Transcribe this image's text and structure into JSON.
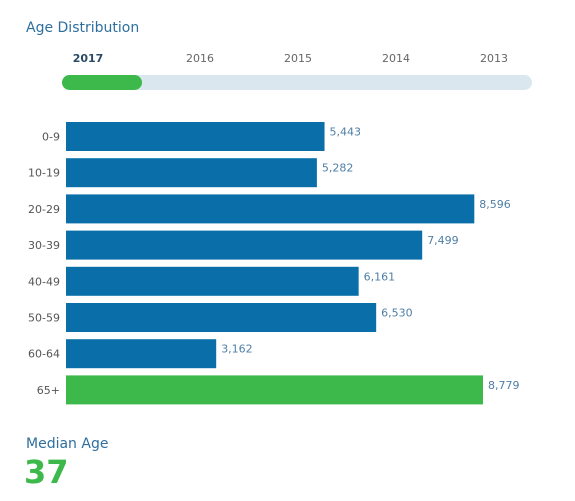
{
  "section_title": "Age Distribution",
  "year_tabs": [
    {
      "label": "2017",
      "active": true
    },
    {
      "label": "2016",
      "active": false
    },
    {
      "label": "2015",
      "active": false
    },
    {
      "label": "2014",
      "active": false
    },
    {
      "label": "2013",
      "active": false
    }
  ],
  "timeline_progress": 0.17,
  "colors": {
    "bar": "#0a6fa8",
    "highlight_bar": "#3db94b",
    "accent_text": "#2e6f9e",
    "timeline_track": "#dbe7ef"
  },
  "chart_data": {
    "type": "bar",
    "orientation": "horizontal",
    "categories": [
      "0-9",
      "10-19",
      "20-29",
      "30-39",
      "40-49",
      "50-59",
      "60-64",
      "65+"
    ],
    "values": [
      5443,
      5282,
      8596,
      7499,
      6161,
      6530,
      3162,
      8779
    ],
    "value_labels": [
      "5,443",
      "5,282",
      "8,596",
      "7,499",
      "6,161",
      "6,530",
      "3,162",
      "8,779"
    ],
    "highlight_category": "65+",
    "title": "",
    "xlabel": "",
    "ylabel": "",
    "xlim": [
      0,
      8779
    ],
    "grid": false
  },
  "median": {
    "label": "Median Age",
    "value": "37"
  }
}
